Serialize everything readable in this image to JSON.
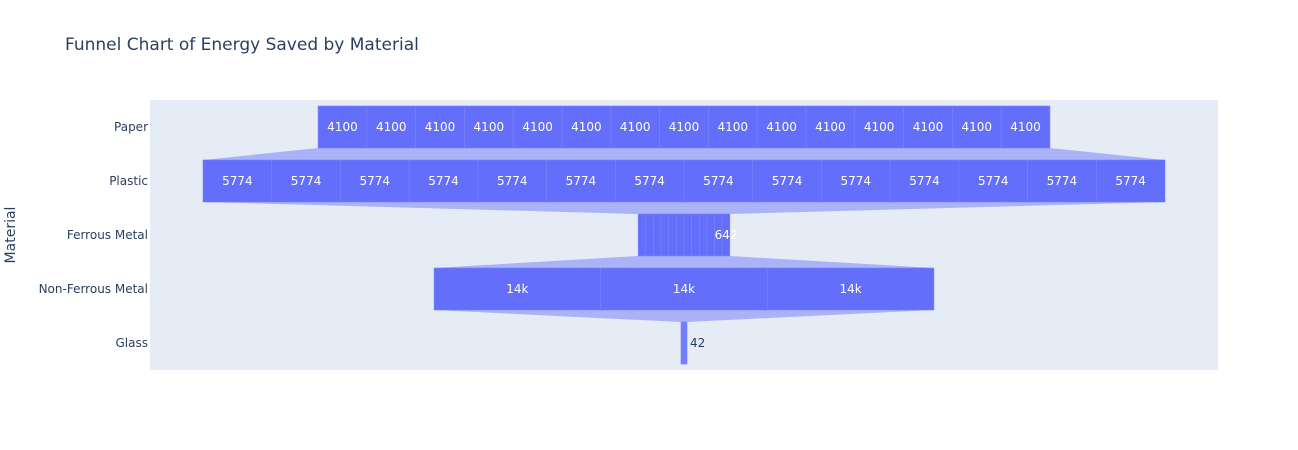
{
  "chart_data": {
    "type": "funnel",
    "title": "Funnel Chart of Energy Saved by Material",
    "ylabel": "Material",
    "categories": [
      "Paper",
      "Plastic",
      "Ferrous Metal",
      "Non-Ferrous Metal",
      "Glass"
    ],
    "stacks": [
      {
        "material": "Paper",
        "segments": [
          4100,
          4100,
          4100,
          4100,
          4100,
          4100,
          4100,
          4100,
          4100,
          4100,
          4100,
          4100,
          4100,
          4100,
          4100
        ],
        "labels": [
          "4100",
          "4100",
          "4100",
          "4100",
          "4100",
          "4100",
          "4100",
          "4100",
          "4100",
          "4100",
          "4100",
          "4100",
          "4100",
          "4100",
          "4100"
        ]
      },
      {
        "material": "Plastic",
        "segments": [
          5774,
          5774,
          5774,
          5774,
          5774,
          5774,
          5774,
          5774,
          5774,
          5774,
          5774,
          5774,
          5774,
          5774
        ],
        "labels": [
          "5774",
          "5774",
          "5774",
          "5774",
          "5774",
          "5774",
          "5774",
          "5774",
          "5774",
          "5774",
          "5774",
          "5774",
          "5774",
          "5774"
        ]
      },
      {
        "material": "Ferrous Metal",
        "segments": [
          642,
          642,
          642,
          642,
          642,
          642,
          642,
          642,
          642,
          642,
          642,
          642
        ],
        "labels": [
          "",
          "",
          "",
          "",
          "",
          "",
          "",
          "",
          "",
          "",
          "",
          "642"
        ]
      },
      {
        "material": "Non-Ferrous Metal",
        "segments": [
          14000,
          14000,
          14000
        ],
        "labels": [
          "14k",
          "14k",
          "14k"
        ]
      },
      {
        "material": "Glass",
        "segments": [
          42,
          42,
          42,
          42,
          42,
          42
        ],
        "labels": [
          "",
          "",
          "",
          "",
          "",
          "42"
        ]
      }
    ],
    "colors": {
      "bar": "#636efa",
      "connector": "#636efa",
      "plot_bg": "#e5ecf6",
      "text": "#2a3f5f"
    },
    "grid": false,
    "legend": "none"
  }
}
